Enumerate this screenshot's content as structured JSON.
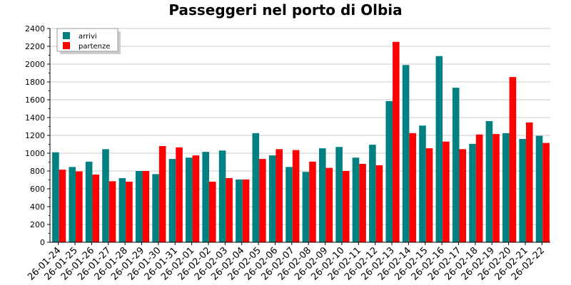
{
  "chart_data": {
    "type": "bar",
    "title": "Passeggeri nel porto di Olbia",
    "xlabel": "",
    "ylabel": "",
    "ylim": [
      0,
      2400
    ],
    "yticks": [
      0,
      200,
      400,
      600,
      800,
      1000,
      1200,
      1400,
      1600,
      1800,
      2000,
      2200,
      2400
    ],
    "grid": "y-major",
    "legend_position": "top-left",
    "categories": [
      "26-01-24",
      "26-01-25",
      "26-01-26",
      "26-01-27",
      "26-01-28",
      "26-01-29",
      "26-01-30",
      "26-01-31",
      "26-02-01",
      "26-02-02",
      "26-02-03",
      "26-02-04",
      "26-02-05",
      "26-02-06",
      "26-02-07",
      "26-02-08",
      "26-02-09",
      "26-02-10",
      "26-02-11",
      "26-02-12",
      "26-02-13",
      "26-02-14",
      "26-02-15",
      "26-02-16",
      "26-02-17",
      "26-02-18",
      "26-02-19",
      "26-02-20",
      "26-02-21",
      "26-02-22"
    ],
    "series": [
      {
        "name": "arrivi",
        "color": "#008080",
        "values": [
          1010,
          845,
          905,
          1045,
          720,
          800,
          765,
          935,
          950,
          1015,
          1030,
          705,
          1225,
          975,
          845,
          790,
          1055,
          1070,
          950,
          1095,
          1585,
          1990,
          1310,
          2090,
          1735,
          1105,
          1360,
          1225,
          1160,
          1195
        ]
      },
      {
        "name": "partenze",
        "color": "#ff0000",
        "values": [
          815,
          795,
          760,
          685,
          680,
          800,
          1080,
          1065,
          975,
          680,
          720,
          705,
          935,
          1045,
          1035,
          905,
          835,
          800,
          880,
          865,
          2250,
          1225,
          1055,
          1130,
          1045,
          1210,
          1215,
          1855,
          1345,
          1115
        ]
      }
    ]
  }
}
